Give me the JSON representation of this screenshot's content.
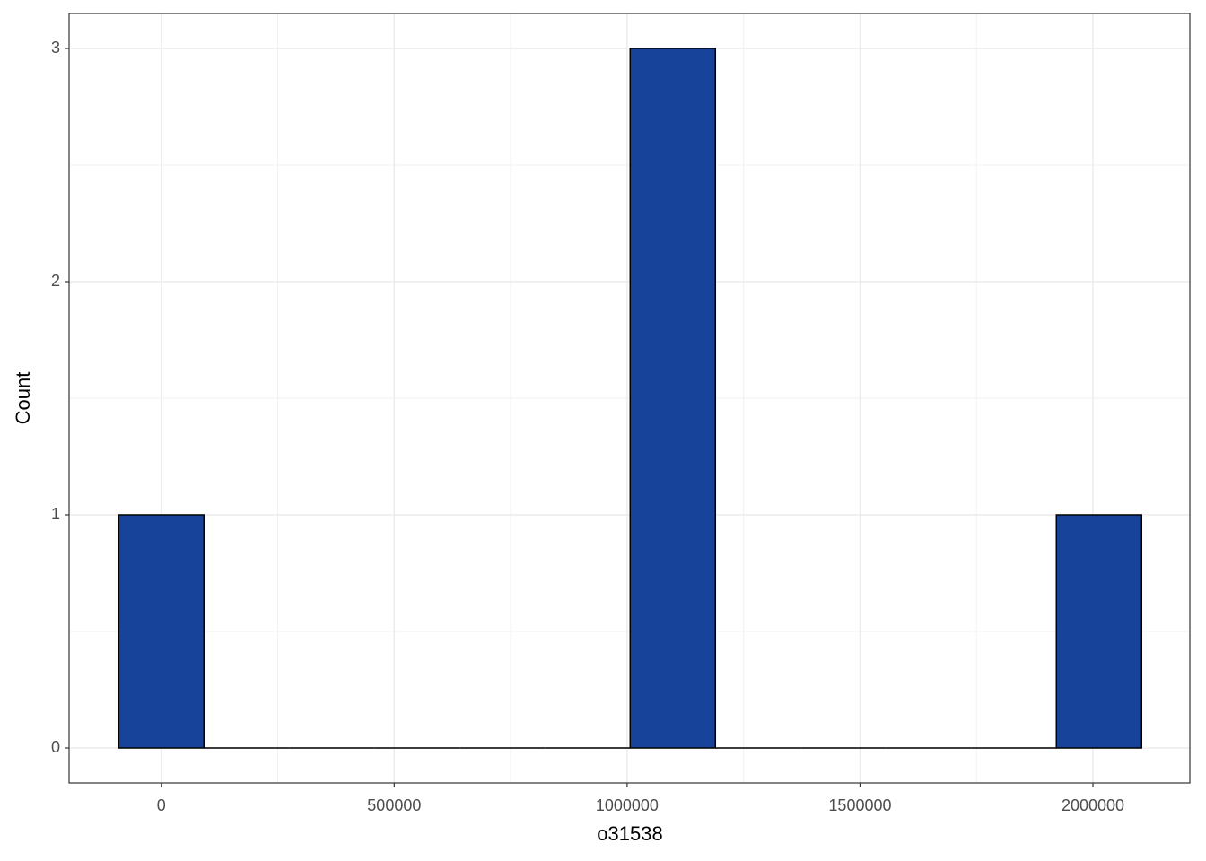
{
  "chart_data": {
    "type": "histogram",
    "x_label": "o31538",
    "y_label": "Count",
    "bins": [
      -91500,
      91500,
      274500,
      457500,
      640500,
      823500,
      1006500,
      1189500,
      1372500,
      1555500,
      1738500,
      1921500,
      2104500
    ],
    "values": [
      1,
      0,
      0,
      0,
      0,
      0,
      3,
      0,
      0,
      0,
      0,
      1
    ],
    "color": "#17439a",
    "edge_color": "#000000",
    "xlim": [
      -198000,
      2208000
    ],
    "xticks": [
      0,
      500000,
      1000000,
      1500000,
      2000000
    ],
    "ylim": [
      -0.15,
      3.15
    ],
    "yticks": [
      0,
      1,
      2,
      3
    ],
    "grid": true
  }
}
